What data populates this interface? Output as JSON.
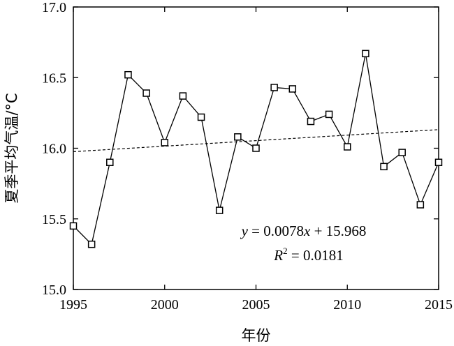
{
  "chart_data": {
    "type": "line",
    "xlabel": "年份",
    "ylabel": "夏季平均气温/°C",
    "xlim": [
      1995,
      2015
    ],
    "ylim": [
      15.0,
      17.0
    ],
    "x_ticks": [
      1995,
      2000,
      2005,
      2010,
      2015
    ],
    "y_ticks": [
      "15.0",
      "15.5",
      "16.0",
      "16.5",
      "17.0"
    ],
    "grid": false,
    "series": [
      {
        "marker": "square",
        "x": [
          1995,
          1996,
          1997,
          1998,
          1999,
          2000,
          2001,
          2002,
          2003,
          2004,
          2005,
          2006,
          2007,
          2008,
          2009,
          2010,
          2011,
          2012,
          2013,
          2014,
          2015
        ],
        "y": [
          15.45,
          15.32,
          15.9,
          16.52,
          16.39,
          16.04,
          16.37,
          16.22,
          15.56,
          16.08,
          16.0,
          16.43,
          16.42,
          16.19,
          16.24,
          16.01,
          16.67,
          15.87,
          15.97,
          15.6,
          15.9
        ],
        "color": "#000000"
      }
    ],
    "trendline": {
      "style": "dashed",
      "slope": 0.0078,
      "intercept": 15.968,
      "equation_parts": {
        "y": "y",
        "eq1": " = 0.0078",
        "x": "x",
        "eq2": " + 15.968"
      },
      "r2_parts": {
        "R": "R",
        "sup": "2",
        "rest": " = 0.0181"
      }
    }
  }
}
